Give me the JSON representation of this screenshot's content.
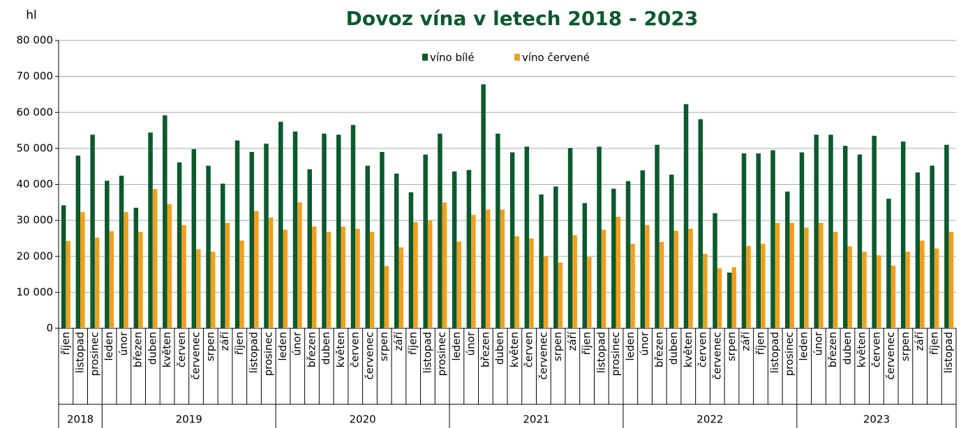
{
  "chart_data": {
    "type": "bar",
    "title": "Dovoz vína v letech 2018 - 2023",
    "ylabel": "hl",
    "categories": [
      "říjen",
      "listopad",
      "prosinec",
      "leden",
      "únor",
      "březen",
      "duben",
      "květen",
      "červen",
      "červenec",
      "srpen",
      "září",
      "říjen",
      "listopad",
      "prosinec",
      "leden",
      "únor",
      "březen",
      "duben",
      "květen",
      "červen",
      "červenec",
      "srpen",
      "září",
      "říjen",
      "listopad",
      "prosinec",
      "leden",
      "únor",
      "březen",
      "duben",
      "květen",
      "červen",
      "červenec",
      "srpen",
      "září",
      "říjen",
      "listopad",
      "prosinec",
      "leden",
      "únor",
      "březen",
      "duben",
      "květen",
      "červen",
      "červenec",
      "srpen",
      "září",
      "říjen",
      "listopad",
      "prosinec",
      "leden",
      "únor",
      "březen",
      "duben",
      "květen",
      "červen",
      "červenec",
      "srpen",
      "září",
      "říjen",
      "listopad"
    ],
    "years": [
      "2018",
      null,
      null,
      "2019",
      null,
      null,
      null,
      null,
      null,
      null,
      null,
      null,
      null,
      null,
      null,
      "2020",
      null,
      null,
      null,
      null,
      null,
      null,
      null,
      null,
      null,
      null,
      null,
      "2021",
      null,
      null,
      null,
      null,
      null,
      null,
      null,
      null,
      null,
      null,
      null,
      "2022",
      null,
      null,
      null,
      null,
      null,
      null,
      null,
      null,
      null,
      null,
      null,
      "2023",
      null,
      null,
      null,
      null,
      null,
      null,
      null,
      null,
      null,
      null
    ],
    "series": [
      {
        "name": "víno bílé",
        "color": "#0b5a2e",
        "values": [
          34200,
          48000,
          53800,
          41000,
          42400,
          33500,
          54400,
          59200,
          46100,
          49800,
          45200,
          40200,
          52200,
          49000,
          51300,
          57400,
          54700,
          44200,
          54100,
          53800,
          56500,
          45200,
          49000,
          43000,
          37800,
          48300,
          54100,
          43600,
          44000,
          67800,
          54100,
          48900,
          50500,
          37200,
          39400,
          50100,
          34800,
          50500,
          38800,
          40900,
          43900,
          51000,
          42700,
          62300,
          58100,
          32000,
          15500,
          48600,
          48600,
          49500,
          38000,
          48900,
          53800,
          53800,
          50700,
          48300,
          53500,
          36000,
          51900,
          43300,
          45200,
          51000
        ]
      },
      {
        "name": "víno červené",
        "color": "#f0a020",
        "values": [
          24300,
          32300,
          25200,
          27000,
          32300,
          26800,
          38700,
          34500,
          28700,
          22000,
          21300,
          29300,
          24400,
          32600,
          30800,
          27400,
          35000,
          28300,
          26800,
          28300,
          27700,
          26800,
          17300,
          22500,
          29500,
          30000,
          35000,
          24100,
          31500,
          33000,
          33000,
          25600,
          25000,
          20000,
          18300,
          25900,
          19800,
          27400,
          31000,
          23500,
          28700,
          24000,
          27100,
          27700,
          20700,
          16700,
          17000,
          22900,
          23500,
          29300,
          29300,
          28000,
          29300,
          26800,
          22800,
          21300,
          20300,
          17400,
          21300,
          24400,
          22200,
          26800
        ]
      }
    ],
    "ylim": [
      0,
      80000
    ],
    "yticks": [
      0,
      {
        "value": 10000,
        "label": "10 000"
      },
      {
        "value": 20000,
        "label": "20 000"
      },
      {
        "value": 30000,
        "label": "30 000"
      },
      {
        "value": 40000,
        "label": "40 000"
      },
      {
        "value": 50000,
        "label": "50 000"
      },
      {
        "value": 60000,
        "label": "60 000"
      },
      {
        "value": 70000,
        "label": "70 000"
      },
      {
        "value": 80000,
        "label": "80 000"
      }
    ],
    "grid": true,
    "legend": "top"
  }
}
